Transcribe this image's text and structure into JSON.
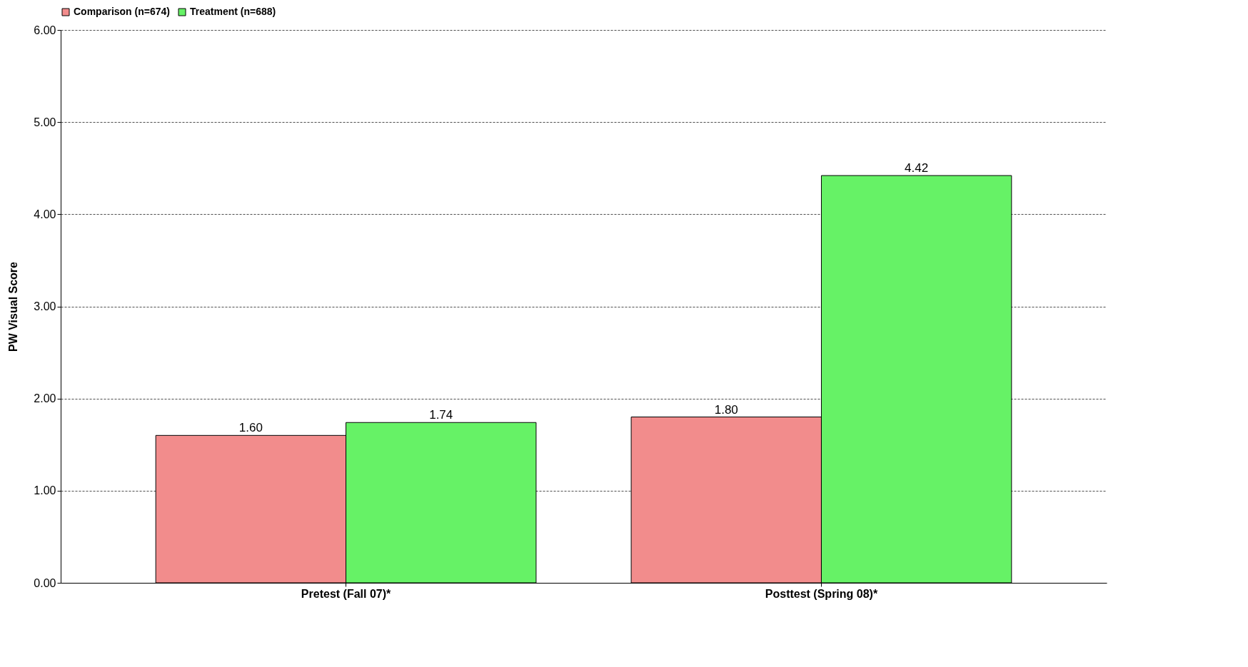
{
  "chart_data": {
    "type": "bar",
    "ylabel": "PW Visual Score",
    "categories": [
      "Pretest (Fall 07)*",
      "Posttest (Spring 08)*"
    ],
    "series": [
      {
        "name": "Comparison (n=674)",
        "color": "#f28c8c",
        "values": [
          1.6,
          1.8
        ],
        "value_labels": [
          "1.60",
          "1.80"
        ]
      },
      {
        "name": "Treatment (n=688)",
        "color": "#66f266",
        "values": [
          1.74,
          4.42
        ],
        "value_labels": [
          "1.74",
          "4.42"
        ]
      }
    ],
    "ylim": [
      0,
      6
    ],
    "yticks": [
      {
        "value": 0,
        "label": "0.00"
      },
      {
        "value": 1,
        "label": "1.00"
      },
      {
        "value": 2,
        "label": "2.00"
      },
      {
        "value": 3,
        "label": "3.00"
      },
      {
        "value": 4,
        "label": "4.00"
      },
      {
        "value": 5,
        "label": "5.00"
      },
      {
        "value": 6,
        "label": "6.00"
      }
    ],
    "grid": "y",
    "legend": "top"
  }
}
